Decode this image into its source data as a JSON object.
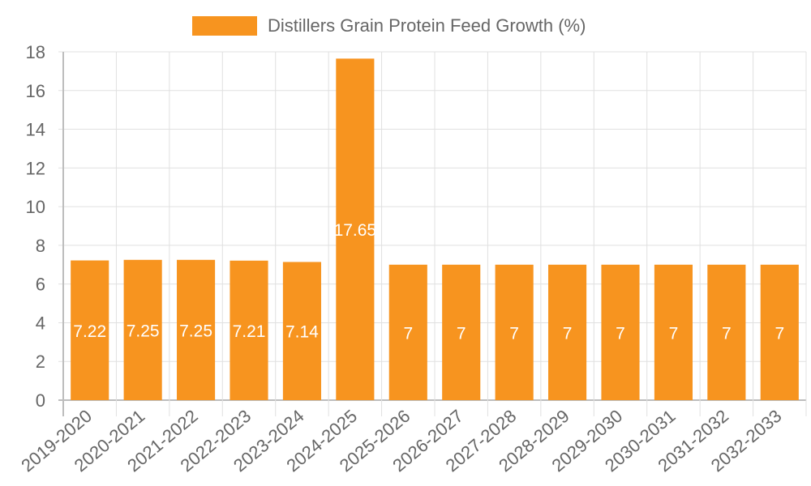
{
  "chart_data": {
    "type": "bar",
    "title": "",
    "xlabel": "",
    "ylabel": "",
    "legend": {
      "position": "top",
      "entries": [
        "Distillers Grain Protein Feed Growth (%)"
      ]
    },
    "categories": [
      "2019-2020",
      "2020-2021",
      "2021-2022",
      "2022-2023",
      "2023-2024",
      "2024-2025",
      "2025-2026",
      "2026-2027",
      "2027-2028",
      "2028-2029",
      "2029-2030",
      "2030-2031",
      "2031-2032",
      "2032-2033"
    ],
    "series": [
      {
        "name": "Distillers Grain Protein Feed Growth (%)",
        "color": "#f7941f",
        "values": [
          7.22,
          7.25,
          7.25,
          7.21,
          7.14,
          17.65,
          7,
          7,
          7,
          7,
          7,
          7,
          7,
          7
        ],
        "data_labels": [
          "7.22",
          "7.25",
          "7.25",
          "7.21",
          "7.14",
          "17.65",
          "7",
          "7",
          "7",
          "7",
          "7",
          "7",
          "7",
          "7"
        ]
      }
    ],
    "ylim": [
      0,
      18
    ],
    "yticks": [
      0,
      2,
      4,
      6,
      8,
      10,
      12,
      14,
      16,
      18
    ],
    "grid": true,
    "data_label_color": "#ffffff"
  },
  "legend": {
    "label": "Distillers Grain Protein Feed Growth (%)",
    "color": "#f7941f"
  }
}
